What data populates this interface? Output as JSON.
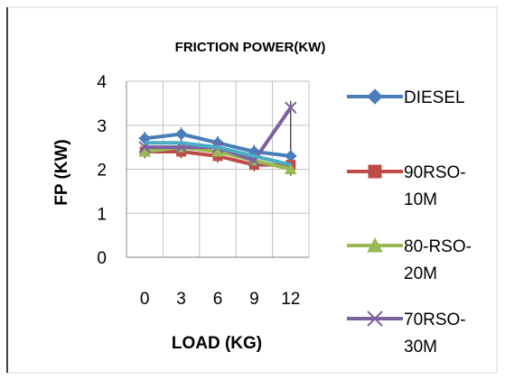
{
  "chart_data": {
    "type": "line",
    "title": "FRICTION POWER(KW)",
    "xlabel": "LOAD (KG)",
    "ylabel": "FP (KW)",
    "categories": [
      "0",
      "3",
      "6",
      "9",
      "12"
    ],
    "ylim": [
      0,
      4
    ],
    "yticks": [
      "0",
      "1",
      "2",
      "3",
      "4"
    ],
    "grid": true,
    "legend_position": "right",
    "error_bars": true,
    "series": [
      {
        "name": "DIESEL",
        "values": [
          2.7,
          2.8,
          2.6,
          2.4,
          2.3
        ],
        "color": "#4a7ebb",
        "marker": "diamond"
      },
      {
        "name": "90RSO-10M",
        "lines": [
          "90RSO-",
          "10M"
        ],
        "values": [
          2.4,
          2.4,
          2.3,
          2.1,
          2.1
        ],
        "color": "#be4b48",
        "marker": "square"
      },
      {
        "name": "80-RSO-20M",
        "lines": [
          "80-RSO-",
          "20M"
        ],
        "values": [
          2.4,
          2.5,
          2.4,
          2.2,
          2.0
        ],
        "color": "#98b954",
        "marker": "triangle"
      },
      {
        "name": "70RSO-30M",
        "lines": [
          "70RSO-",
          "30M"
        ],
        "values": [
          2.5,
          2.5,
          2.5,
          2.2,
          3.4
        ],
        "color": "#7d60a0",
        "marker": "x"
      }
    ],
    "extra_series": {
      "values": [
        2.6,
        2.6,
        2.5,
        2.3,
        2.1
      ],
      "color": "#4bacc6"
    }
  }
}
